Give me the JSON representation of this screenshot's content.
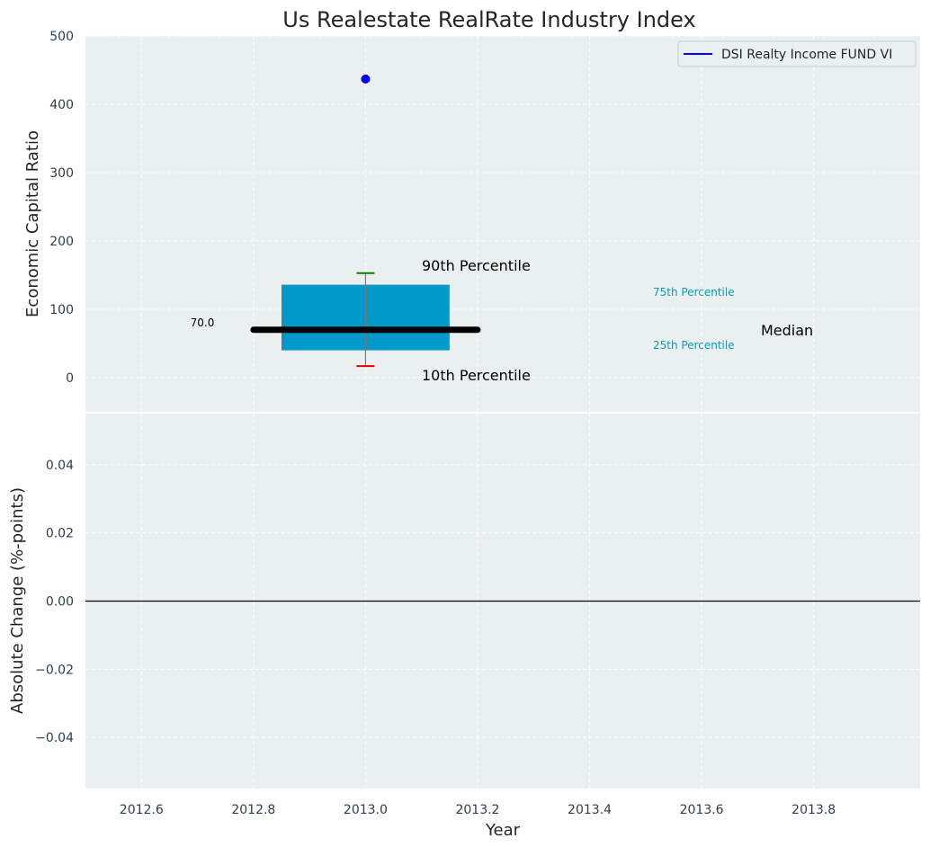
{
  "chart_data": {
    "type": "box",
    "title": "Us Realestate RealRate Industry Index",
    "colors": {
      "panel_bg": "#eaeff0",
      "grid": "#ffffff",
      "box": "#0099c9",
      "median": "#000000",
      "whisker": "#7a7a7a",
      "cap_high": "#008000",
      "cap_low": "#e00000",
      "point": "#0000ff",
      "zero_line": "#000000",
      "percentile_label": "#00a0c4"
    },
    "top": {
      "ylabel": "Economic Capital Ratio",
      "ylim": [
        -50,
        500
      ],
      "yticks": [
        0,
        100,
        200,
        300,
        400,
        500
      ],
      "ytick_labels": [
        "0",
        "100",
        "200",
        "300",
        "400",
        "500"
      ],
      "box": {
        "x": 2013.0,
        "p10": 17,
        "p25": 40,
        "median": 70,
        "p75": 136,
        "p90": 153,
        "box_x_range": [
          2012.85,
          2013.15
        ],
        "median_x_range": [
          2012.8,
          2013.2
        ]
      },
      "median_value_label": "70.0",
      "point": {
        "x": 2013.0,
        "y": 437
      },
      "legend": {
        "entries": [
          "DSI Realty Income FUND VI"
        ],
        "placement": "top-right"
      },
      "annotations": {
        "p90": "90th Percentile",
        "p10": "10th Percentile",
        "p75": "75th Percentile",
        "p25": "25th Percentile",
        "median": "Median"
      },
      "grid": true
    },
    "bottom": {
      "ylabel": "Absolute Change (%-points)",
      "xlabel": "Year",
      "ylim": [
        -0.055,
        0.055
      ],
      "yticks": [
        -0.04,
        -0.02,
        0.0,
        0.02,
        0.04
      ],
      "ytick_labels": [
        "−0.04",
        "−0.02",
        "0.00",
        "0.02",
        "0.04"
      ],
      "zero_line": 0.0,
      "grid": true
    },
    "xlim": [
      2012.5,
      2013.99
    ],
    "xticks": [
      2012.6,
      2012.8,
      2013.0,
      2013.2,
      2013.4,
      2013.6,
      2013.8
    ],
    "xtick_labels": [
      "2012.6",
      "2012.8",
      "2013.0",
      "2013.2",
      "2013.4",
      "2013.6",
      "2013.8"
    ]
  }
}
